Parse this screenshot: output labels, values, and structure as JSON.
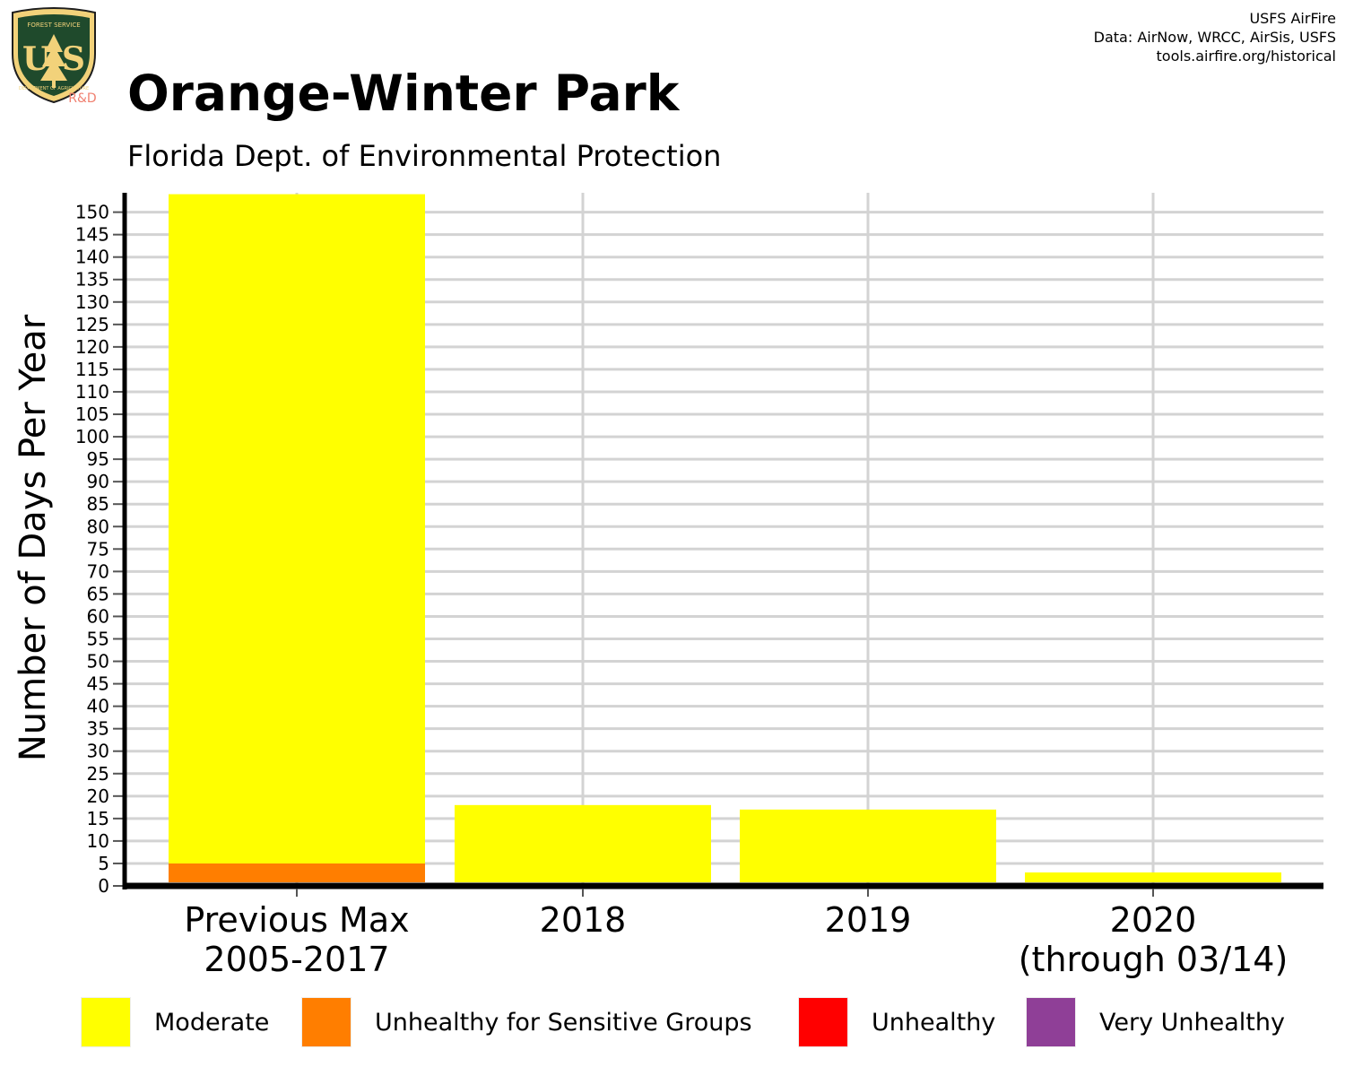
{
  "header": {
    "title": "Orange-Winter Park",
    "subtitle": "Florida Dept. of Environmental Protection",
    "credits": [
      "USFS AirFire",
      "Data: AirNow, WRCC, AirSis, USFS",
      "tools.airfire.org/historical"
    ]
  },
  "logo": {
    "top_text": "FOREST SERVICE",
    "letters": "U S",
    "bottom_text": "DEPARTMENT OF AGRICULTURE",
    "tag": "R&D"
  },
  "chart_data": {
    "type": "bar",
    "stacked": true,
    "ylabel": "Number of Days Per Year",
    "ylim": [
      0,
      155
    ],
    "yticks": [
      0,
      5,
      10,
      15,
      20,
      25,
      30,
      35,
      40,
      45,
      50,
      55,
      60,
      65,
      70,
      75,
      80,
      85,
      90,
      95,
      100,
      105,
      110,
      115,
      120,
      125,
      130,
      135,
      140,
      145,
      150
    ],
    "categories": [
      [
        "Previous Max",
        "2005-2017"
      ],
      [
        "2018"
      ],
      [
        "2019"
      ],
      [
        "2020",
        "(through 03/14)"
      ]
    ],
    "series": [
      {
        "name": "Moderate",
        "color": "#ffff00",
        "values": [
          149,
          18,
          17,
          3
        ]
      },
      {
        "name": "Unhealthy for Sensitive Groups",
        "color": "#ff7e00",
        "values": [
          5,
          0,
          0,
          0
        ]
      },
      {
        "name": "Unhealthy",
        "color": "#ff0000",
        "values": [
          0,
          0,
          0,
          0
        ]
      },
      {
        "name": "Very Unhealthy",
        "color": "#8f3f97",
        "values": [
          0,
          0,
          0,
          0
        ]
      }
    ],
    "grid": true,
    "legend_position": "bottom"
  }
}
